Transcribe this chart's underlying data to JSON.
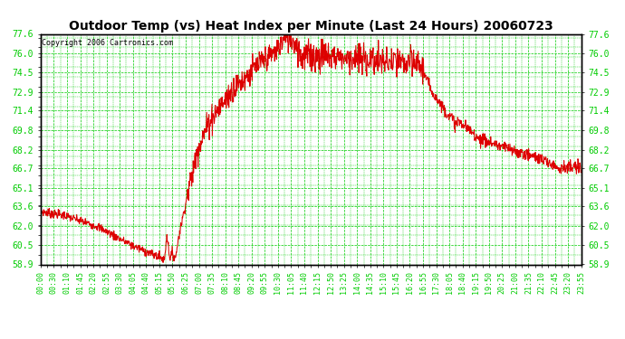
{
  "title": "Outdoor Temp (vs) Heat Index per Minute (Last 24 Hours) 20060723",
  "copyright": "Copyright 2006 Cartronics.com",
  "background_color": "#ffffff",
  "plot_bg_color": "#ffffff",
  "line_color": "#dd0000",
  "grid_color": "#00cc00",
  "yticks": [
    58.9,
    60.5,
    62.0,
    63.6,
    65.1,
    66.7,
    68.2,
    69.8,
    71.4,
    72.9,
    74.5,
    76.0,
    77.6
  ],
  "ymin": 58.9,
  "ymax": 77.6,
  "xtick_labels": [
    "00:00",
    "00:30",
    "01:10",
    "01:45",
    "02:20",
    "02:55",
    "03:30",
    "04:05",
    "04:40",
    "05:15",
    "05:50",
    "06:25",
    "07:00",
    "07:35",
    "08:10",
    "08:45",
    "09:20",
    "09:55",
    "10:30",
    "11:05",
    "11:40",
    "12:15",
    "12:50",
    "13:25",
    "14:00",
    "14:35",
    "15:10",
    "15:45",
    "16:20",
    "16:55",
    "17:30",
    "18:05",
    "18:40",
    "19:15",
    "19:50",
    "20:25",
    "21:00",
    "21:35",
    "22:10",
    "22:45",
    "23:20",
    "23:55"
  ]
}
